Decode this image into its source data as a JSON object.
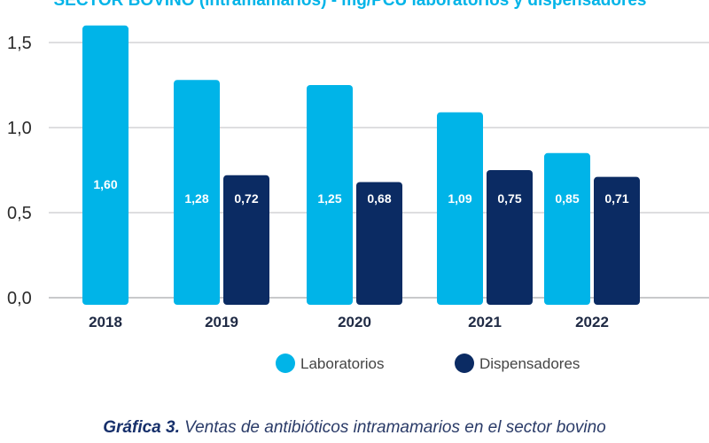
{
  "chart_data": {
    "type": "bar",
    "title": "SECTOR BOVINO (intramamarios) - mg/PCU laboratorios y dispensadores",
    "categories": [
      "2018",
      "2019",
      "2020",
      "2021",
      "2022"
    ],
    "yticks": [
      "0,0",
      "0,5",
      "1,0",
      "1,5"
    ],
    "ylim": [
      0,
      1.5
    ],
    "series": [
      {
        "name": "Laboratorios",
        "color": "#00b4e8",
        "values": [
          1.6,
          1.28,
          1.25,
          1.09,
          0.85
        ],
        "labels": [
          "1,60",
          "1,28",
          "1,25",
          "1,09",
          "0,85"
        ]
      },
      {
        "name": "Dispensadores",
        "color": "#0b2b63",
        "values": [
          null,
          0.72,
          0.68,
          0.75,
          0.71
        ],
        "labels": [
          "",
          "0,72",
          "0,68",
          "0,75",
          "0,71"
        ]
      }
    ],
    "grid": true,
    "legend": "bottom-center"
  },
  "colors": {
    "title": "#00b4e8",
    "grid": "#a7a9ac",
    "axis_text": "#2b2b2b",
    "caption": "#2a3b68"
  },
  "caption": {
    "label": "Gráfica 3.",
    "text": " Ventas de antibióticos intramamarios en el sector bovino"
  }
}
